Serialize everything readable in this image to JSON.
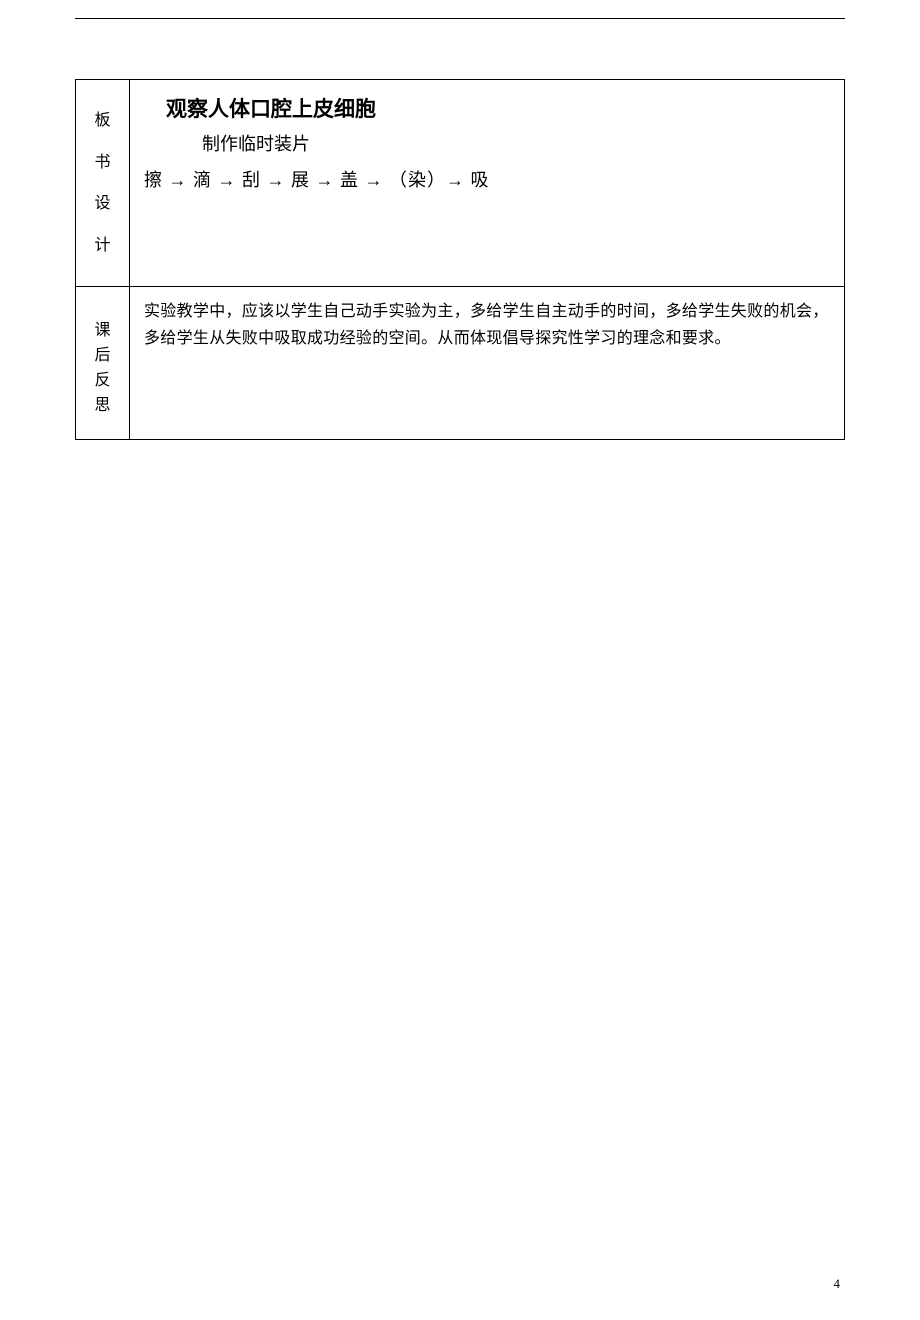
{
  "table": {
    "row1": {
      "label_chars": [
        "板",
        "书",
        "设",
        "计"
      ],
      "title": "观察人体口腔上皮细胞",
      "subtitle": "制作临时装片",
      "steps_text": "擦 → 滴 → 刮 → 展 →  盖 → （染）→ 吸"
    },
    "row2": {
      "label_chars": [
        "课",
        "后",
        "反",
        "思"
      ],
      "reflection": "实验教学中，应该以学生自己动手实验为主，多给学生自主动手的时间，多给学生失败的机会，多给学生从失败中吸取成功经验的空间。从而体现倡导探究性学习的理念和要求。"
    }
  },
  "page_number": "4",
  "styles": {
    "border_color": "#000000",
    "background_color": "#ffffff",
    "text_color": "#000000",
    "title_fontsize": 21,
    "subtitle_fontsize": 18,
    "steps_fontsize": 18,
    "body_fontsize": 16,
    "label_fontsize": 16
  }
}
